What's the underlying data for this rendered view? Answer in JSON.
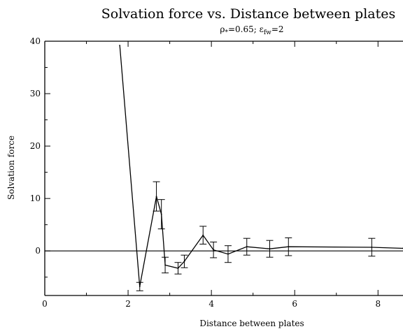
{
  "chart_data": {
    "type": "line",
    "title": "Solvation force vs. Distance between plates",
    "subtitle_parts": {
      "rho": "ρ",
      "rho_sub": "*",
      "rho_val": "=0.65; ",
      "eps": "ε",
      "eps_sub": "fw",
      "eps_val": "=2"
    },
    "xlabel": "Distance between plates",
    "ylabel": "Solvation force",
    "xlim": [
      0,
      8.6
    ],
    "ylim": [
      -8.5,
      40
    ],
    "xticks": [
      0,
      2,
      4,
      6,
      8
    ],
    "yticks": [
      0,
      10,
      20,
      30,
      40
    ],
    "xtick_labels": [
      "0",
      "2",
      "4",
      "6",
      "8"
    ],
    "ytick_labels": [
      "0",
      "10",
      "20",
      "30",
      "40"
    ],
    "reference_line_y": 0,
    "grid": false,
    "legend": "none",
    "series": [
      {
        "color": "#000000",
        "x": [
          1.8,
          2.28,
          2.68,
          2.8,
          2.89,
          3.2,
          3.35,
          3.8,
          4.05,
          4.4,
          4.85,
          5.4,
          5.85,
          7.85,
          8.6
        ],
        "y": [
          39.2,
          -6.8,
          10.4,
          7.0,
          -2.7,
          -3.3,
          -2.0,
          3.0,
          0.2,
          -0.6,
          0.8,
          0.4,
          0.8,
          0.7,
          0.5
        ],
        "error": [
          0,
          0.8,
          2.8,
          2.8,
          1.5,
          1.1,
          1.2,
          1.7,
          1.5,
          1.6,
          1.6,
          1.6,
          1.7,
          1.7,
          0
        ]
      }
    ]
  }
}
